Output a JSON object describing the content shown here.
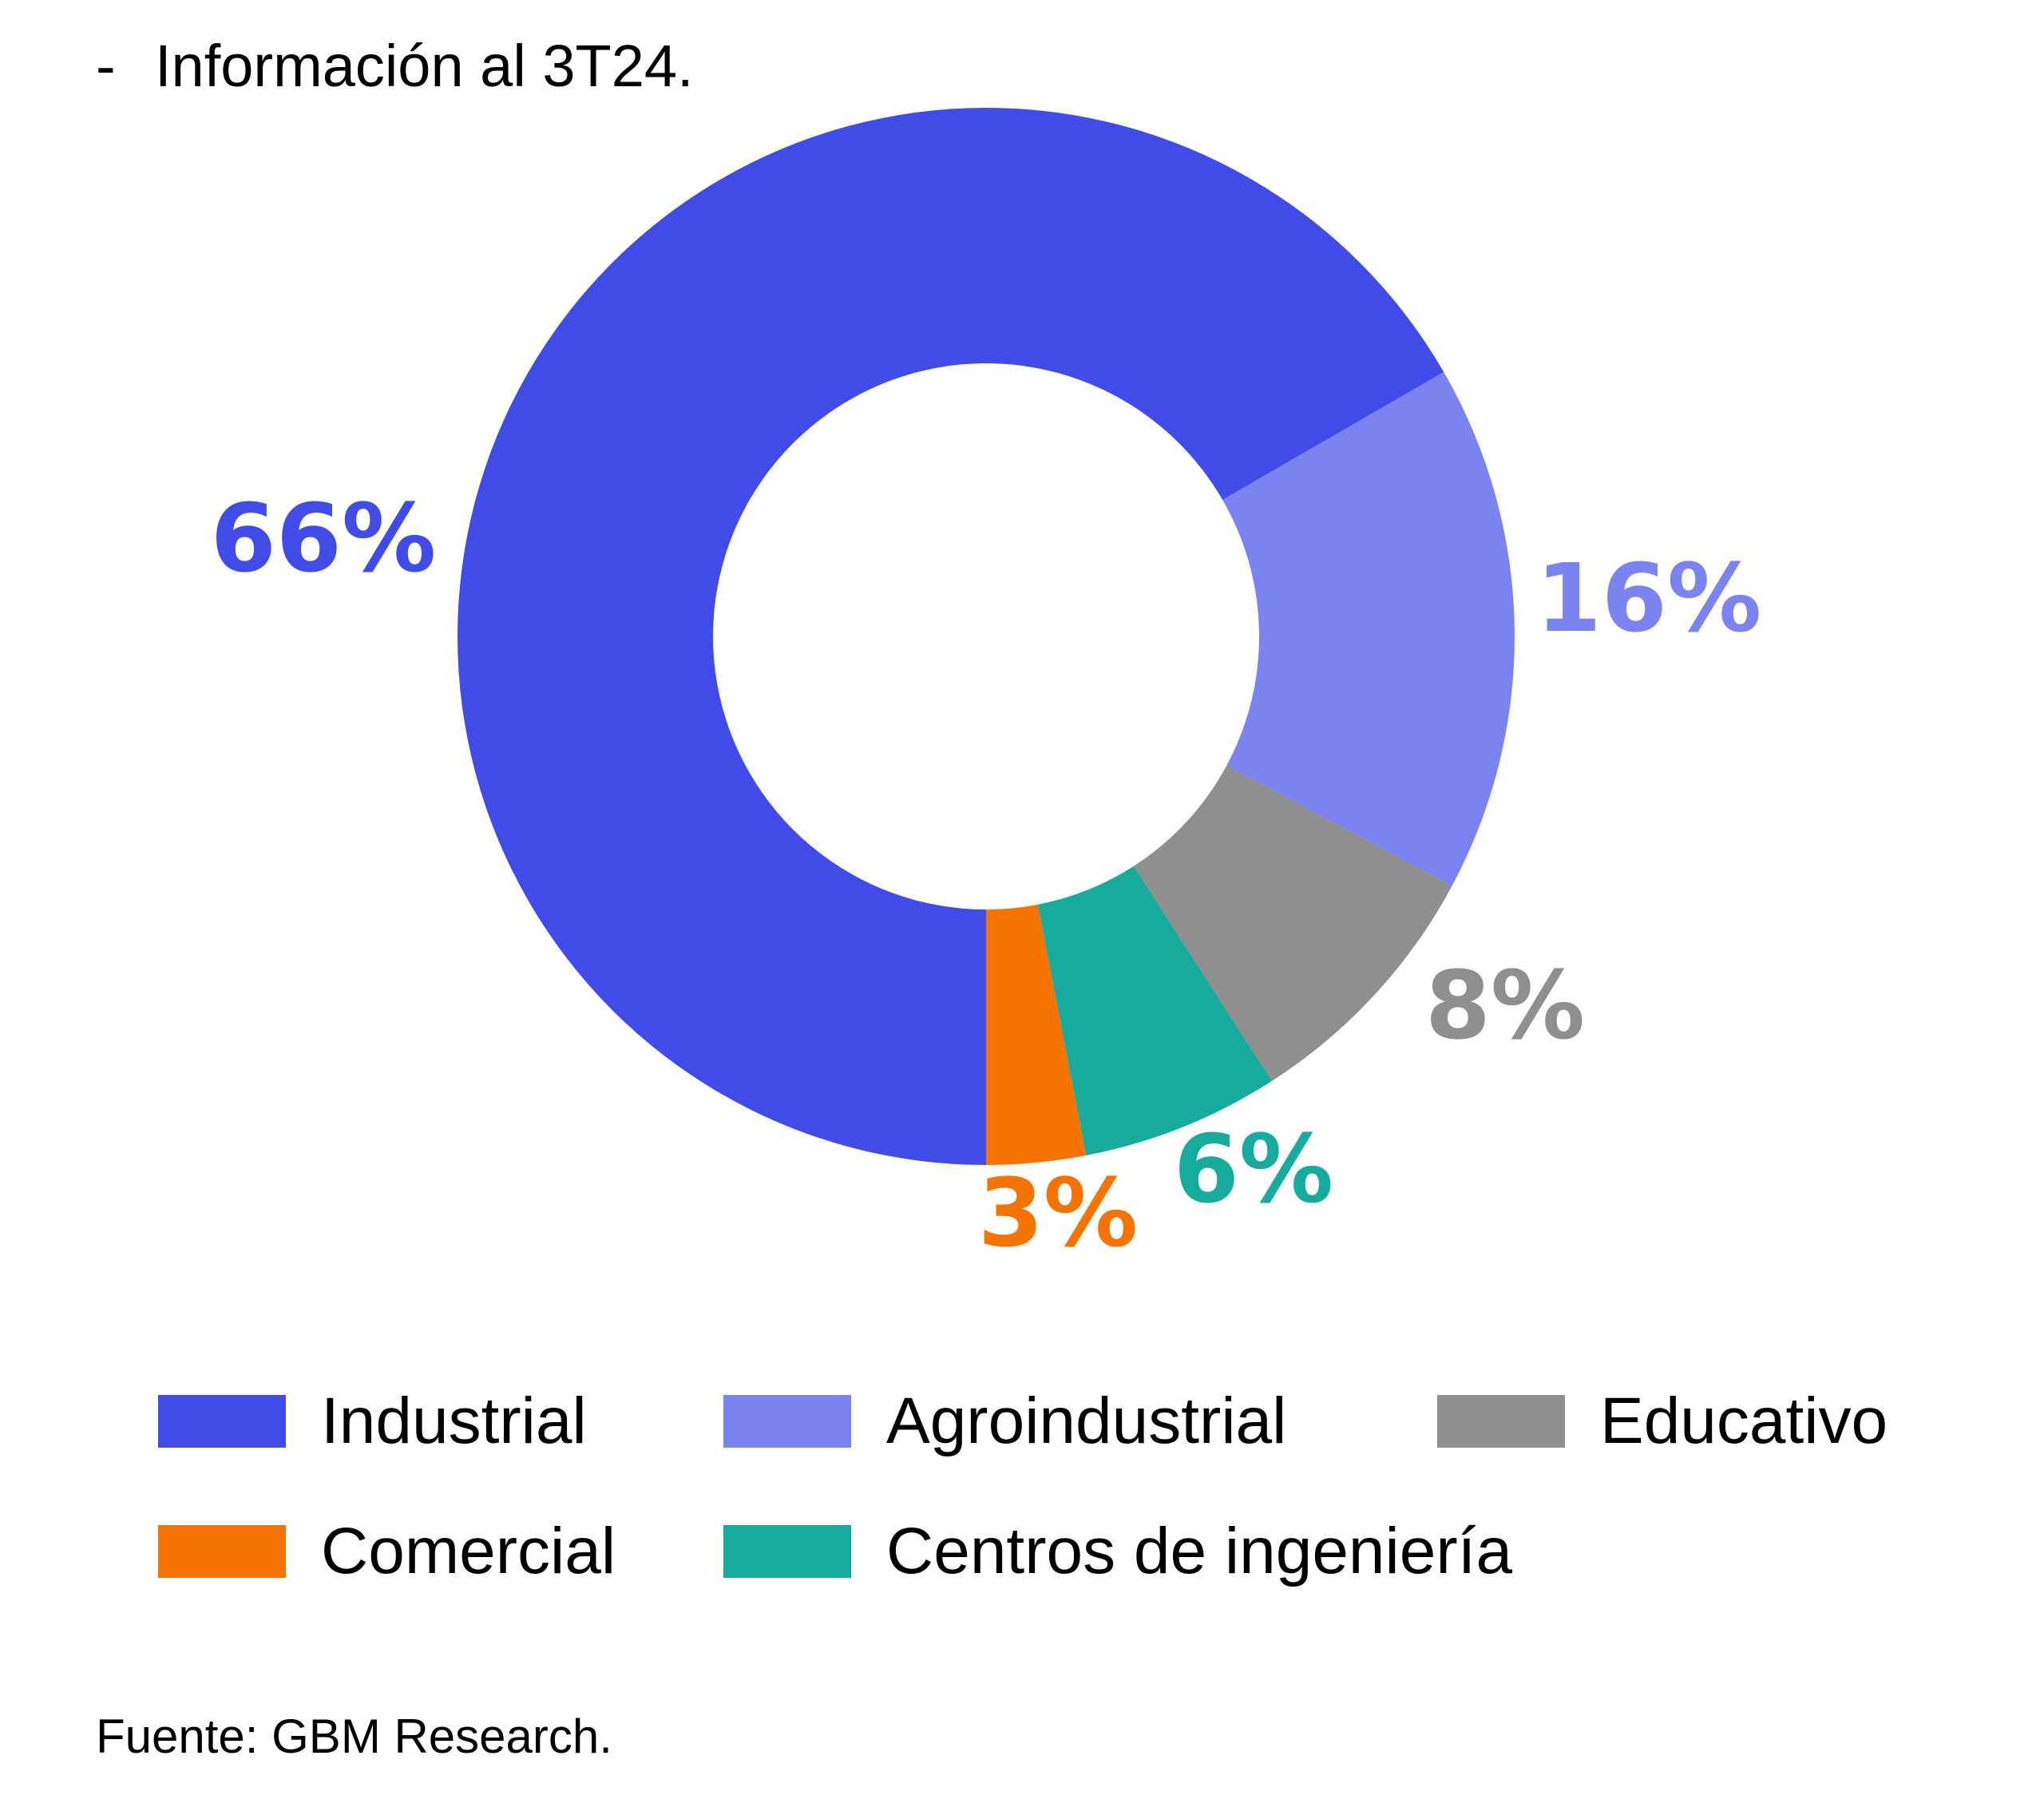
{
  "note": {
    "dash": "-",
    "text": "Información al 3T24."
  },
  "chart_data": {
    "type": "pie",
    "variant": "donut",
    "title": "",
    "slices": [
      {
        "label": "Industrial",
        "value": 66,
        "display": "66%",
        "color": "#414BE8"
      },
      {
        "label": "Agroindustrial",
        "value": 16,
        "display": "16%",
        "color": "#7A83F0"
      },
      {
        "label": "Educativo",
        "value": 8,
        "display": "8%",
        "color": "#8E8F8E"
      },
      {
        "label": "Centros de ingeniería",
        "value": 6,
        "display": "6%",
        "color": "#17AB9D"
      },
      {
        "label": "Comercial",
        "value": 3,
        "display": "3%",
        "color": "#F57300"
      }
    ],
    "legend_position": "bottom"
  },
  "legend": [
    {
      "label": "Industrial",
      "color": "#414BE8"
    },
    {
      "label": "Agroindustrial",
      "color": "#7A83F0"
    },
    {
      "label": "Educativo",
      "color": "#8E8F8E"
    },
    {
      "label": "Comercial",
      "color": "#F57300"
    },
    {
      "label": "Centros de ingeniería",
      "color": "#17AB9D"
    }
  ],
  "source": "Fuente: GBM Research."
}
